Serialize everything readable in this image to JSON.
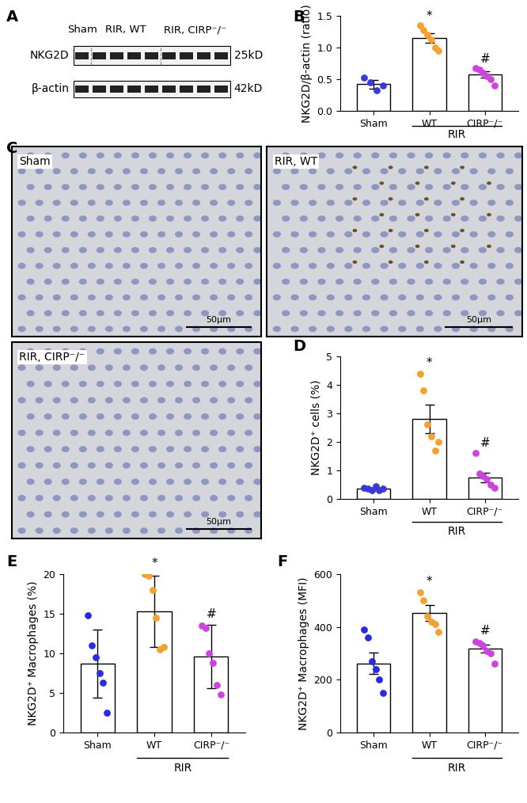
{
  "panel_labels": [
    "A",
    "B",
    "C",
    "D",
    "E",
    "F"
  ],
  "blot": {
    "groups": [
      {
        "label": "Sham",
        "lanes": 1
      },
      {
        "label": "RIR, WT",
        "lanes": 4
      },
      {
        "label": "RIR, CIRP⁻/⁻",
        "lanes": 4
      }
    ],
    "rows": [
      {
        "label": "NKG2D",
        "size": "25kD"
      },
      {
        "label": "β-actin",
        "size": "42kD"
      }
    ]
  },
  "micrographs": {
    "images": [
      "Sham",
      "RIR, WT",
      "RIR, CIRP⁻/⁻"
    ],
    "scale_bar": "50μm"
  },
  "chart_data": [
    {
      "type": "bar",
      "panel": "B",
      "y_label": "NKG2D/β-actin (ratio)",
      "categories": [
        "Sham",
        "WT",
        "CIRP⁻/⁻"
      ],
      "values": [
        0.42,
        1.15,
        0.57
      ],
      "errors": [
        0.07,
        0.08,
        0.05
      ],
      "points": [
        [
          0.52,
          0.45,
          0.32,
          0.4
        ],
        [
          1.35,
          1.28,
          1.2,
          1.12,
          1.0,
          0.95
        ],
        [
          0.68,
          0.65,
          0.6,
          0.55,
          0.5,
          0.4
        ]
      ],
      "colors": [
        "#3a3ad6",
        "#f5a030",
        "#cc44dd"
      ],
      "marker": "o",
      "ylim": [
        0,
        1.5
      ],
      "yticks": [
        {
          "value": 0,
          "label": "0.0"
        },
        0.5,
        {
          "value": 1,
          "label": "1.0"
        },
        1.5
      ],
      "group_label": {
        "text": "RIR",
        "categories": [
          "WT",
          "CIRP⁻/⁻"
        ]
      },
      "annotations": [
        {
          "category": "WT",
          "text": "*"
        },
        {
          "category": "CIRP⁻/⁻",
          "text": "#"
        }
      ]
    },
    {
      "type": "bar",
      "panel": "D",
      "y_label": "NKG2D⁺ cells (%)",
      "categories": [
        "Sham",
        "WT",
        "CIRP⁻/⁻"
      ],
      "values": [
        0.35,
        2.8,
        0.75
      ],
      "errors": [
        0.04,
        0.5,
        0.17
      ],
      "points": [
        [
          0.4,
          0.35,
          0.3,
          0.45,
          0.3,
          0.35
        ],
        [
          4.4,
          3.8,
          2.6,
          2.2,
          1.7,
          2.0
        ],
        [
          1.6,
          0.9,
          0.8,
          0.7,
          0.5,
          0.4
        ]
      ],
      "colors": [
        "#3a3ad6",
        "#f5a030",
        "#cc44dd"
      ],
      "marker": "o",
      "ylim": [
        0,
        5
      ],
      "yticks": [
        0,
        1,
        2,
        3,
        4,
        5
      ],
      "group_label": {
        "text": "RIR",
        "categories": [
          "WT",
          "CIRP⁻/⁻"
        ]
      },
      "annotations": [
        {
          "category": "WT",
          "text": "*"
        },
        {
          "category": "CIRP⁻/⁻",
          "text": "#"
        }
      ]
    },
    {
      "type": "bar",
      "panel": "E",
      "y_label": "NKG2D⁺ Macrophages (%)",
      "categories": [
        "Sham",
        "WT",
        "CIRP⁻/⁻"
      ],
      "values": [
        8.7,
        15.3,
        9.6
      ],
      "errors": [
        4.3,
        4.5,
        4.0
      ],
      "points": [
        [
          14.8,
          11,
          9.5,
          7.5,
          6.3,
          2.5
        ],
        [
          20,
          19.8,
          18,
          14.5,
          10.5,
          10.8
        ],
        [
          13.5,
          13.2,
          10,
          8.8,
          6,
          4.8
        ]
      ],
      "colors": [
        "#2a2ae0",
        "#f5a030",
        "#cc44dd"
      ],
      "marker": "o",
      "ylim": [
        0,
        20
      ],
      "yticks": [
        0,
        5,
        10,
        15,
        20
      ],
      "group_label": {
        "text": "RIR",
        "categories": [
          "WT",
          "CIRP⁻/⁻"
        ]
      },
      "annotations": [
        {
          "category": "WT",
          "text": "*"
        },
        {
          "category": "CIRP⁻/⁻",
          "text": "#"
        }
      ]
    },
    {
      "type": "bar",
      "panel": "F",
      "y_label": "NKG2D⁺ Macrophages (MFI)",
      "categories": [
        "Sham",
        "WT",
        "CIRP⁻/⁻"
      ],
      "values": [
        262,
        452,
        318
      ],
      "errors": [
        40,
        30,
        15
      ],
      "points": [
        [
          390,
          360,
          270,
          240,
          200,
          150
        ],
        [
          530,
          500,
          440,
          420,
          410,
          380
        ],
        [
          345,
          340,
          330,
          310,
          300,
          260
        ]
      ],
      "colors": [
        "#2a2ae0",
        "#f5a030",
        "#cc44dd"
      ],
      "marker": "o",
      "ylim": [
        0,
        600
      ],
      "yticks": [
        0,
        200,
        400,
        600
      ],
      "group_label": {
        "text": "RIR",
        "categories": [
          "WT",
          "CIRP⁻/⁻"
        ]
      },
      "annotations": [
        {
          "category": "WT",
          "text": "*"
        },
        {
          "category": "CIRP⁻/⁻",
          "text": "#"
        }
      ]
    }
  ]
}
